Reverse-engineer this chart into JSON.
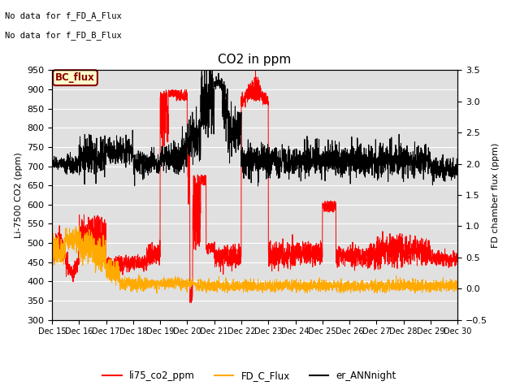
{
  "title": "CO2 in ppm",
  "ylabel_left": "Li-7500 CO2 (ppm)",
  "ylabel_right": "FD chamber flux (ppm)",
  "ylim_left": [
    300,
    950
  ],
  "ylim_right": [
    -0.5,
    3.5
  ],
  "yticks_left": [
    300,
    350,
    400,
    450,
    500,
    550,
    600,
    650,
    700,
    750,
    800,
    850,
    900,
    950
  ],
  "yticks_right": [
    -0.5,
    0.0,
    0.5,
    1.0,
    1.5,
    2.0,
    2.5,
    3.0,
    3.5
  ],
  "xtick_labels": [
    "Dec 15",
    "Dec 16",
    "Dec 17",
    "Dec 18",
    "Dec 19",
    "Dec 20",
    "Dec 21",
    "Dec 22",
    "Dec 23",
    "Dec 24",
    "Dec 25",
    "Dec 26",
    "Dec 27",
    "Dec 28",
    "Dec 29",
    "Dec 30"
  ],
  "note_line1": "No data for f_FD_A_Flux",
  "note_line2": "No data for f_FD_B_Flux",
  "bc_flux_label": "BC_flux",
  "legend_entries": [
    "li75_co2_ppm",
    "FD_C_Flux",
    "er_ANNnight"
  ],
  "line_colors": {
    "li75": "#ff0000",
    "fd_c": "#ffaa00",
    "ann": "#000000"
  },
  "plot_bg_color": "#e0e0e0"
}
